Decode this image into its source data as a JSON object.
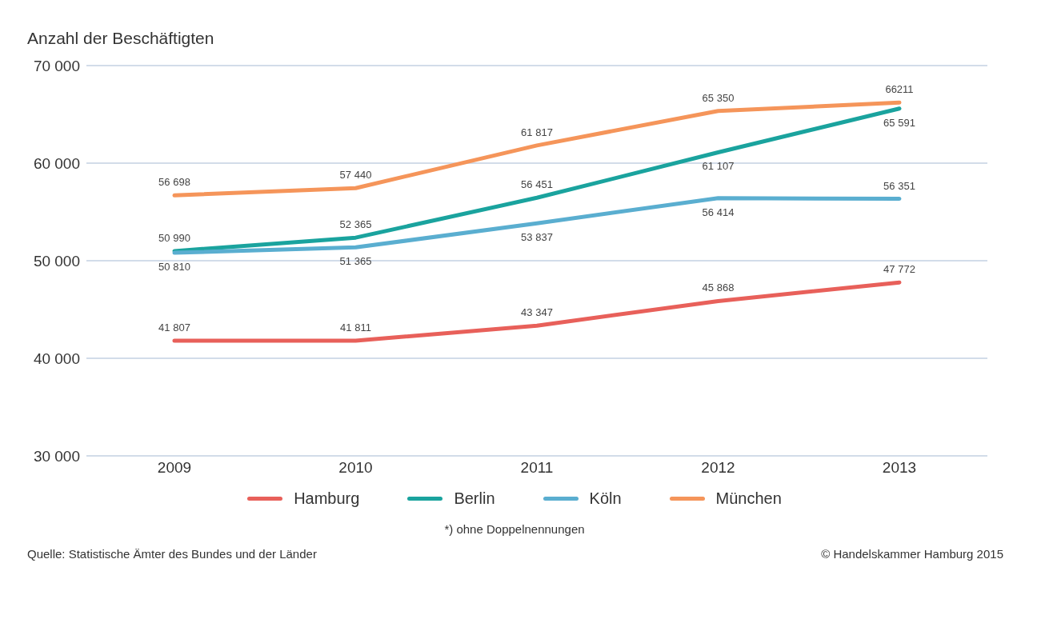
{
  "chart_data": {
    "type": "line",
    "title": "Anzahl der Beschäftigten",
    "categories": [
      "2009",
      "2010",
      "2011",
      "2012",
      "2013"
    ],
    "series": [
      {
        "name": "Hamburg",
        "color": "#e8605a",
        "values": [
          41807,
          41811,
          43347,
          45868,
          47772
        ],
        "value_labels": [
          "41 807",
          "41 811",
          "43 347",
          "45 868",
          "47 772"
        ]
      },
      {
        "name": "Berlin",
        "color": "#1aa39e",
        "values": [
          50990,
          52365,
          56451,
          61107,
          65591
        ],
        "value_labels": [
          "50 990",
          "52 365",
          "56 451",
          "61 107",
          "65 591"
        ]
      },
      {
        "name": "Köln",
        "color": "#5aaed0",
        "values": [
          50810,
          51365,
          53837,
          56414,
          56351
        ],
        "value_labels": [
          "50 810",
          "51 365",
          "53 837",
          "56 414",
          "56 351"
        ]
      },
      {
        "name": "München",
        "color": "#f5955a",
        "values": [
          56698,
          57440,
          61817,
          65350,
          66211
        ],
        "value_labels": [
          "56 698",
          "57 440",
          "61 817",
          "65 350",
          "66211"
        ]
      }
    ],
    "ylim": [
      30000,
      70000
    ],
    "yticks": [
      {
        "value": 30000,
        "label": "30 000"
      },
      {
        "value": 40000,
        "label": "40 000"
      },
      {
        "value": 50000,
        "label": "50 000"
      },
      {
        "value": 60000,
        "label": "60 000"
      },
      {
        "value": 70000,
        "label": "70 000"
      }
    ],
    "grid": "y",
    "legend": "bottom",
    "marker": "none",
    "line_style": "solid",
    "annotations": [
      "*) ohne Doppelnennungen",
      "Quelle: Statistische Ämter des Bundes und der Länder",
      "© Handelskammer Hamburg 2015"
    ]
  }
}
